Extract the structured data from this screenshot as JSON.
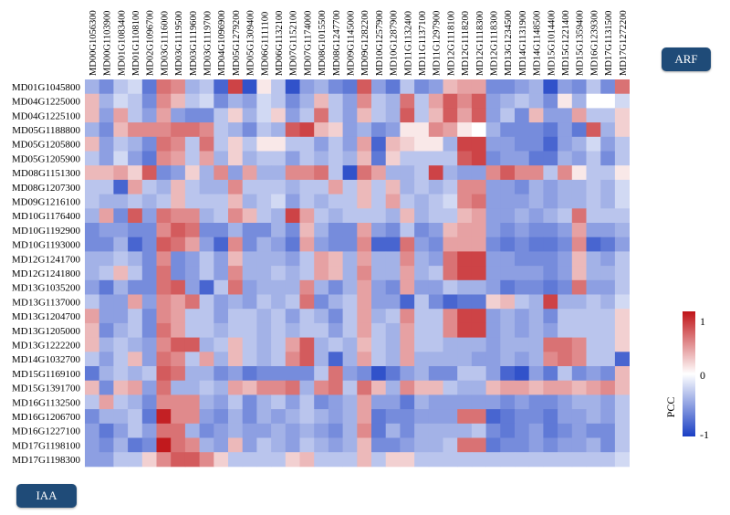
{
  "labels": {
    "top_right": "ARF",
    "bottom_left": "IAA"
  },
  "colorbar": {
    "title": "PCC",
    "max_label": "1",
    "mid_label": "0",
    "min_label": "-1",
    "colors": {
      "low": "#1a3fc4",
      "mid": "#ffffff",
      "high": "#c01418"
    }
  },
  "chart_data": {
    "type": "heatmap",
    "title": "",
    "vmin": -1,
    "vmax": 1,
    "columns": [
      "MD00G1056300",
      "MD00G1103900",
      "MD01G1083400",
      "MD01G1108100",
      "MD02G1096700",
      "MD03G1116000",
      "MD03G1119500",
      "MD03G1119600",
      "MD03G1119700",
      "MD04G1096900",
      "MD05G1279200",
      "MD05G1309400",
      "MD06G1111100",
      "MD06G1132100",
      "MD07G1152100",
      "MD07G1174000",
      "MD08G1015500",
      "MD08G1247700",
      "MD09G1145000",
      "MD09G1282200",
      "MD10G1257900",
      "MD10G1287900",
      "MD11G1132400",
      "MD11G1137100",
      "MD11G1297900",
      "MD12G1118100",
      "MD12G1118200",
      "MD12G1118300",
      "MD12G1118300",
      "MD13G1234500",
      "MD14G1131900",
      "MD14G1148500",
      "MD15G1014400",
      "MD15G1221400",
      "MD15G1359400",
      "MD16G1239300",
      "MD17G1131500",
      "MD17G1272200"
    ],
    "rows": [
      "MD01G1045800",
      "MD04G1225000",
      "MD04G1225100",
      "MD05G1188800",
      "MD05G1205800",
      "MD05G1205900",
      "MD08G1151300",
      "MD08G1207300",
      "MD09G1216100",
      "MD10G1176400",
      "MD10G1192900",
      "MD10G1193000",
      "MD12G1241700",
      "MD12G1241800",
      "MD13G1035200",
      "MD13G1137000",
      "MD13G1204700",
      "MD13G1205000",
      "MD13G1222200",
      "MD14G1032700",
      "MD15G1169100",
      "MD15G1391700",
      "MD16G1132500",
      "MD16G1206700",
      "MD16G1227100",
      "MD17G1198100",
      "MD17G1198300"
    ],
    "values": [
      [
        -0.4,
        -0.6,
        -0.3,
        -0.2,
        -0.7,
        0.6,
        0.5,
        -0.4,
        -0.3,
        -0.8,
        0.8,
        -0.9,
        0.1,
        -0.3,
        -0.9,
        -0.5,
        -0.4,
        -0.6,
        -0.7,
        0.7,
        -0.5,
        -0.7,
        -0.3,
        -0.6,
        -0.5,
        0.3,
        0.4,
        0.4,
        -0.6,
        -0.6,
        -0.5,
        -0.4,
        -0.9,
        -0.5,
        -0.6,
        -0.3,
        -0.6,
        0.6
      ],
      [
        0.3,
        -0.4,
        -0.2,
        -0.3,
        -0.6,
        0.5,
        0.3,
        -0.3,
        -0.2,
        -0.6,
        -0.4,
        -0.5,
        -0.2,
        -0.3,
        -0.6,
        -0.4,
        0.3,
        -0.3,
        -0.5,
        0.5,
        -0.3,
        -0.4,
        0.6,
        -0.3,
        0.4,
        0.7,
        0.5,
        0.7,
        -0.5,
        -0.4,
        -0.3,
        -0.4,
        -0.6,
        0.1,
        -0.4,
        0.0,
        0.0,
        -0.2
      ],
      [
        0.3,
        -0.5,
        0.4,
        -0.3,
        -0.5,
        0.4,
        -0.5,
        -0.6,
        -0.6,
        -0.3,
        0.2,
        -0.4,
        -0.2,
        0.2,
        -0.5,
        -0.3,
        0.6,
        -0.3,
        -0.5,
        0.3,
        -0.3,
        -0.4,
        0.7,
        -0.3,
        0.3,
        0.7,
        0.4,
        0.7,
        -0.5,
        -0.3,
        -0.6,
        0.3,
        -0.5,
        -0.5,
        0.4,
        -0.3,
        -0.3,
        0.2
      ],
      [
        -0.4,
        -0.6,
        0.3,
        0.5,
        0.5,
        0.5,
        0.6,
        0.6,
        0.5,
        -0.3,
        -0.4,
        -0.6,
        -0.3,
        -0.4,
        0.7,
        0.8,
        0.3,
        0.2,
        -0.5,
        -0.4,
        -0.6,
        -0.5,
        0.1,
        0.1,
        0.5,
        0.4,
        0.1,
        0.0,
        -0.4,
        -0.6,
        -0.6,
        -0.6,
        -0.7,
        -0.5,
        -0.7,
        0.7,
        -0.4,
        0.2
      ],
      [
        0.3,
        -0.5,
        -0.3,
        -0.4,
        -0.6,
        0.6,
        0.5,
        -0.3,
        0.6,
        -0.3,
        0.2,
        -0.3,
        0.1,
        0.1,
        -0.3,
        -0.3,
        -0.5,
        -0.3,
        -0.5,
        0.4,
        -0.8,
        0.3,
        0.2,
        0.1,
        0.1,
        -0.4,
        0.8,
        0.8,
        -0.5,
        -0.5,
        -0.6,
        -0.6,
        -0.8,
        -0.5,
        -0.4,
        -0.2,
        -0.5,
        -0.3
      ],
      [
        -0.3,
        -0.5,
        -0.2,
        -0.5,
        -0.7,
        0.5,
        0.4,
        -0.3,
        0.4,
        -0.4,
        0.2,
        -0.4,
        -0.3,
        -0.3,
        -0.5,
        -0.3,
        -0.4,
        -0.3,
        -0.4,
        0.3,
        -0.7,
        0.2,
        -0.3,
        -0.3,
        -0.3,
        -0.3,
        0.7,
        0.8,
        -0.6,
        -0.5,
        -0.5,
        -0.7,
        -0.7,
        -0.4,
        -0.5,
        -0.3,
        -0.6,
        -0.3
      ],
      [
        0.3,
        0.3,
        0.4,
        0.2,
        0.7,
        -0.6,
        -0.5,
        0.2,
        -0.4,
        0.5,
        -0.5,
        0.4,
        -0.4,
        -0.4,
        0.5,
        0.5,
        0.6,
        -0.3,
        -0.9,
        0.6,
        0.4,
        -0.4,
        -0.4,
        -0.3,
        0.8,
        -0.4,
        -0.5,
        -0.5,
        0.5,
        0.7,
        0.5,
        0.5,
        -0.3,
        0.5,
        0.1,
        -0.3,
        -0.3,
        0.1
      ],
      [
        -0.3,
        -0.3,
        -0.8,
        0.4,
        -0.3,
        -0.4,
        0.3,
        -0.3,
        -0.4,
        -0.4,
        0.5,
        -0.3,
        -0.3,
        -0.3,
        -0.4,
        -0.3,
        -0.3,
        0.4,
        -0.3,
        0.3,
        -0.3,
        0.3,
        -0.4,
        -0.3,
        -0.4,
        -0.3,
        0.5,
        0.5,
        -0.5,
        -0.5,
        -0.6,
        -0.4,
        -0.5,
        -0.4,
        -0.4,
        -0.3,
        -0.4,
        -0.2
      ],
      [
        -0.3,
        -0.4,
        -0.4,
        -0.3,
        -0.4,
        -0.3,
        0.3,
        -0.3,
        -0.3,
        -0.3,
        0.3,
        -0.4,
        -0.3,
        -0.2,
        -0.5,
        -0.3,
        -0.4,
        -0.3,
        -0.3,
        0.3,
        -0.3,
        0.4,
        -0.3,
        -0.4,
        -0.3,
        -0.2,
        0.5,
        0.6,
        -0.5,
        -0.5,
        -0.5,
        -0.4,
        -0.5,
        -0.4,
        -0.4,
        -0.3,
        -0.4,
        -0.2
      ],
      [
        -0.4,
        0.4,
        -0.6,
        0.7,
        -0.5,
        0.6,
        0.5,
        0.5,
        -0.4,
        -0.3,
        0.5,
        0.3,
        -0.3,
        -0.4,
        0.8,
        0.4,
        -0.3,
        -0.4,
        -0.3,
        -0.3,
        -0.3,
        -0.4,
        0.3,
        -0.4,
        -0.3,
        -0.3,
        0.3,
        0.4,
        -0.5,
        -0.5,
        -0.4,
        -0.5,
        -0.4,
        -0.3,
        0.6,
        -0.3,
        -0.3,
        -0.3
      ],
      [
        -0.6,
        -0.5,
        -0.5,
        -0.6,
        -0.6,
        0.5,
        0.7,
        0.6,
        -0.6,
        -0.6,
        -0.4,
        -0.6,
        -0.6,
        -0.4,
        -0.6,
        0.3,
        -0.4,
        -0.6,
        -0.6,
        0.4,
        -0.5,
        -0.6,
        -0.3,
        -0.6,
        -0.5,
        0.3,
        0.4,
        0.4,
        -0.5,
        -0.6,
        -0.5,
        -0.6,
        -0.6,
        -0.5,
        0.4,
        -0.5,
        -0.5,
        -0.4
      ],
      [
        -0.6,
        -0.6,
        -0.4,
        -0.8,
        -0.6,
        0.7,
        0.6,
        0.4,
        -0.5,
        -0.8,
        0.5,
        -0.6,
        -0.4,
        -0.5,
        -0.7,
        0.4,
        -0.5,
        -0.6,
        -0.6,
        0.5,
        -0.8,
        -0.8,
        0.6,
        -0.5,
        -0.6,
        0.4,
        0.4,
        0.4,
        -0.6,
        -0.7,
        -0.6,
        -0.7,
        -0.7,
        -0.6,
        0.5,
        -0.8,
        -0.7,
        -0.5
      ],
      [
        -0.4,
        -0.4,
        -0.3,
        -0.4,
        -0.6,
        0.5,
        -0.6,
        -0.5,
        -0.3,
        -0.5,
        0.3,
        -0.4,
        -0.4,
        -0.4,
        -0.5,
        -0.3,
        0.4,
        0.3,
        -0.4,
        0.4,
        -0.4,
        -0.4,
        0.5,
        -0.4,
        -0.5,
        0.6,
        0.8,
        0.8,
        -0.5,
        -0.5,
        -0.6,
        -0.6,
        -0.6,
        -0.5,
        0.3,
        -0.4,
        -0.5,
        -0.3
      ],
      [
        -0.4,
        -0.3,
        0.3,
        -0.3,
        -0.6,
        0.6,
        -0.6,
        -0.5,
        -0.3,
        -0.5,
        0.5,
        -0.4,
        -0.4,
        -0.3,
        -0.4,
        -0.3,
        0.4,
        0.3,
        -0.4,
        0.5,
        -0.4,
        -0.4,
        0.4,
        -0.4,
        -0.3,
        0.6,
        0.8,
        0.8,
        -0.5,
        -0.5,
        -0.5,
        -0.5,
        -0.6,
        -0.5,
        0.3,
        -0.4,
        -0.4,
        -0.3
      ],
      [
        -0.5,
        -0.7,
        -0.4,
        -0.6,
        -0.6,
        0.6,
        0.7,
        -0.5,
        -0.8,
        -0.3,
        0.6,
        -0.5,
        -0.4,
        -0.4,
        -0.4,
        0.5,
        -0.4,
        -0.6,
        -0.4,
        0.4,
        -0.5,
        -0.6,
        0.4,
        -0.5,
        -0.5,
        -0.3,
        -0.4,
        -0.4,
        -0.5,
        -0.7,
        -0.6,
        -0.6,
        -0.7,
        -0.6,
        0.6,
        -0.5,
        -0.5,
        -0.3
      ],
      [
        -0.3,
        -0.5,
        -0.5,
        0.4,
        -0.5,
        0.5,
        0.4,
        0.6,
        -0.3,
        -0.5,
        -0.4,
        -0.5,
        -0.3,
        -0.4,
        -0.3,
        0.6,
        -0.6,
        -0.4,
        -0.3,
        0.4,
        -0.5,
        -0.5,
        -0.8,
        -0.3,
        -0.6,
        -0.8,
        -0.7,
        -0.7,
        0.2,
        0.3,
        -0.3,
        -0.4,
        0.8,
        -0.4,
        -0.4,
        -0.3,
        -0.4,
        -0.2
      ],
      [
        0.4,
        -0.5,
        -0.5,
        -0.3,
        -0.6,
        0.5,
        0.4,
        -0.3,
        -0.3,
        -0.5,
        -0.3,
        -0.3,
        -0.4,
        -0.3,
        -0.5,
        -0.3,
        -0.4,
        -0.6,
        -0.3,
        0.4,
        -0.4,
        -0.3,
        0.5,
        -0.3,
        -0.3,
        0.5,
        0.8,
        0.8,
        -0.5,
        -0.4,
        -0.5,
        -0.4,
        -0.6,
        -0.3,
        -0.3,
        -0.3,
        -0.3,
        0.2
      ],
      [
        0.3,
        -0.6,
        -0.4,
        -0.3,
        -0.6,
        0.6,
        0.4,
        -0.3,
        -0.3,
        -0.4,
        -0.3,
        -0.3,
        -0.4,
        -0.3,
        -0.4,
        -0.3,
        -0.3,
        -0.5,
        -0.3,
        0.4,
        -0.3,
        -0.4,
        0.4,
        -0.3,
        -0.3,
        0.5,
        0.8,
        0.8,
        -0.5,
        -0.4,
        -0.5,
        -0.4,
        -0.5,
        -0.3,
        -0.3,
        -0.3,
        -0.3,
        0.2
      ],
      [
        0.3,
        -0.4,
        -0.3,
        -0.4,
        -0.5,
        0.5,
        0.7,
        0.7,
        -0.4,
        -0.3,
        0.3,
        -0.3,
        -0.4,
        -0.3,
        0.4,
        0.7,
        -0.4,
        -0.3,
        -0.4,
        0.3,
        -0.3,
        -0.4,
        0.4,
        -0.3,
        -0.3,
        -0.4,
        -0.4,
        -0.4,
        -0.5,
        -0.4,
        -0.4,
        -0.4,
        0.6,
        0.6,
        0.5,
        -0.3,
        -0.3,
        0.2
      ],
      [
        -0.3,
        -0.5,
        -0.3,
        0.3,
        -0.5,
        0.6,
        0.5,
        -0.3,
        0.4,
        -0.4,
        0.3,
        -0.3,
        -0.4,
        -0.3,
        0.5,
        0.7,
        -0.4,
        -0.8,
        -0.4,
        0.4,
        -0.3,
        -0.4,
        0.4,
        -0.4,
        -0.4,
        -0.4,
        -0.4,
        -0.5,
        -0.5,
        -0.4,
        -0.5,
        -0.4,
        0.5,
        0.6,
        0.5,
        -0.3,
        -0.3,
        -0.8
      ],
      [
        -0.7,
        -0.4,
        -0.3,
        -0.4,
        -0.3,
        0.7,
        0.6,
        -0.4,
        -0.4,
        -0.6,
        -0.5,
        -0.7,
        -0.6,
        -0.6,
        -0.6,
        -0.6,
        -0.3,
        0.6,
        -0.5,
        -0.6,
        -0.9,
        -0.7,
        -0.5,
        -0.4,
        -0.6,
        -0.6,
        -0.3,
        -0.3,
        -0.5,
        -0.8,
        -0.9,
        -0.5,
        -0.7,
        -0.3,
        -0.6,
        -0.5,
        -0.6,
        0.3
      ],
      [
        0.3,
        -0.6,
        0.3,
        0.4,
        -0.5,
        0.6,
        -0.4,
        -0.4,
        -0.3,
        -0.4,
        0.4,
        0.3,
        0.5,
        0.5,
        0.6,
        -0.4,
        0.5,
        0.6,
        -0.3,
        0.6,
        0.3,
        -0.4,
        0.5,
        0.3,
        0.3,
        -0.3,
        -0.4,
        -0.4,
        0.3,
        0.4,
        0.4,
        0.3,
        0.4,
        0.4,
        0.3,
        0.4,
        0.5,
        0.3
      ],
      [
        -0.3,
        0.4,
        -0.3,
        -0.4,
        -0.6,
        0.5,
        0.5,
        0.5,
        -0.4,
        -0.5,
        -0.3,
        -0.6,
        -0.4,
        -0.3,
        -0.5,
        -0.3,
        -0.6,
        -0.5,
        -0.4,
        0.4,
        -0.5,
        -0.5,
        -0.7,
        -0.4,
        -0.5,
        -0.5,
        -0.5,
        -0.5,
        -0.5,
        -0.6,
        -0.5,
        -0.6,
        -0.6,
        -0.5,
        -0.4,
        -0.4,
        -0.5,
        -0.3
      ],
      [
        -0.6,
        -0.4,
        -0.4,
        -0.3,
        -0.7,
        0.95,
        0.5,
        0.5,
        -0.5,
        -0.6,
        -0.4,
        -0.6,
        -0.4,
        -0.5,
        -0.4,
        -0.3,
        -0.4,
        -0.5,
        -0.4,
        0.4,
        -0.7,
        -0.6,
        -0.6,
        -0.5,
        -0.5,
        -0.5,
        0.6,
        0.6,
        -0.8,
        -0.7,
        -0.6,
        -0.6,
        -0.7,
        -0.5,
        -0.5,
        -0.4,
        -0.5,
        -0.3
      ],
      [
        -0.5,
        -0.7,
        -0.5,
        -0.3,
        -0.5,
        0.6,
        0.6,
        -0.4,
        -0.6,
        -0.5,
        -0.4,
        -0.5,
        -0.5,
        -0.4,
        -0.5,
        -0.4,
        -0.5,
        -0.6,
        -0.4,
        0.5,
        -0.7,
        -0.4,
        -0.6,
        -0.4,
        -0.4,
        -0.4,
        -0.4,
        -0.3,
        -0.6,
        -0.7,
        -0.6,
        -0.5,
        -0.7,
        -0.6,
        -0.5,
        -0.6,
        -0.6,
        -0.3
      ],
      [
        -0.5,
        -0.6,
        -0.4,
        -0.7,
        -0.6,
        0.98,
        0.6,
        0.5,
        -0.4,
        -0.5,
        0.3,
        -0.5,
        -0.3,
        -0.4,
        -0.5,
        -0.3,
        -0.4,
        -0.5,
        -0.4,
        0.3,
        -0.6,
        -0.6,
        -0.5,
        -0.4,
        -0.4,
        -0.3,
        0.6,
        0.6,
        -0.7,
        -0.6,
        -0.6,
        -0.5,
        -0.6,
        -0.5,
        -0.5,
        -0.4,
        -0.6,
        -0.3
      ],
      [
        -0.5,
        -0.5,
        -0.3,
        -0.3,
        0.2,
        0.5,
        0.7,
        0.7,
        0.5,
        0.2,
        -0.3,
        -0.3,
        -0.3,
        -0.3,
        0.2,
        0.3,
        -0.3,
        -0.3,
        -0.3,
        0.3,
        -0.3,
        0.2,
        0.2,
        -0.3,
        -0.3,
        -0.3,
        -0.3,
        -0.3,
        -0.3,
        -0.3,
        -0.3,
        -0.3,
        -0.3,
        -0.3,
        -0.3,
        -0.3,
        -0.3,
        -0.2
      ]
    ]
  }
}
